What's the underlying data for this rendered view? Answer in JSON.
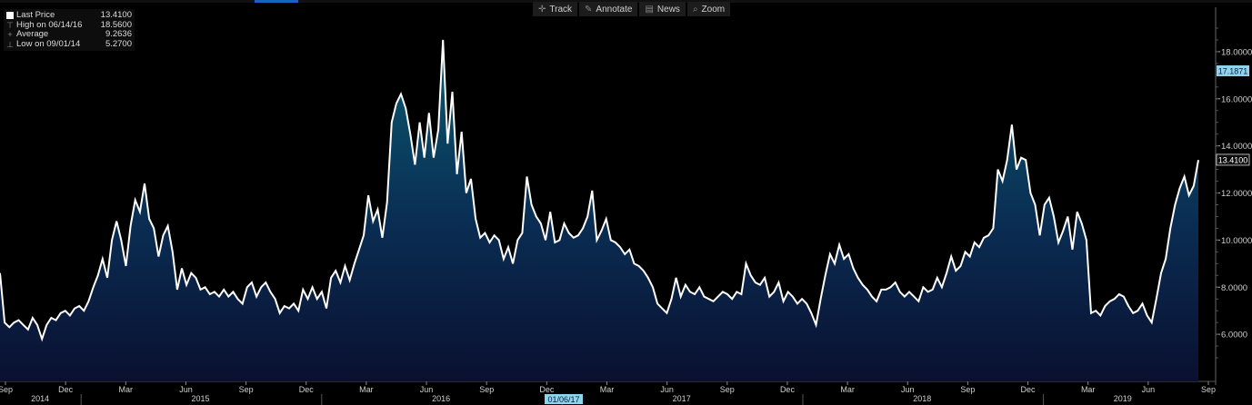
{
  "toolbar": {
    "items": [
      {
        "label": "Track",
        "icon": "crosshair-icon"
      },
      {
        "label": "Annotate",
        "icon": "pencil-icon"
      },
      {
        "label": "News",
        "icon": "news-icon"
      },
      {
        "label": "Zoom",
        "icon": "magnifier-icon"
      }
    ]
  },
  "legend": {
    "rows": [
      {
        "label": "Last Price",
        "value": "13.4100"
      },
      {
        "label": "High on 06/14/16",
        "value": "18.5600"
      },
      {
        "label": "Average",
        "value": "9.2636"
      },
      {
        "label": "Low on 09/01/14",
        "value": "5.2700"
      }
    ]
  },
  "chart_data": {
    "type": "area",
    "title": "",
    "xlabel": "",
    "ylabel": "",
    "ylim": [
      4.0,
      19.5
    ],
    "yticks": [
      "6.0000",
      "8.0000",
      "10.0000",
      "12.0000",
      "14.0000",
      "16.0000",
      "18.0000"
    ],
    "ytick_values": [
      6,
      8,
      10,
      12,
      14,
      16,
      18
    ],
    "markers": [
      {
        "label": "17.1871",
        "value": 17.1871
      },
      {
        "label": "13.4100",
        "value": 13.41
      }
    ],
    "x_start": "2014-09",
    "x_end": "2019-09",
    "month_ticks": [
      "Sep",
      "Dec",
      "Mar",
      "Jun",
      "Sep",
      "Dec",
      "Mar",
      "Jun",
      "Sep",
      "Dec",
      "Mar",
      "Jun",
      "Sep",
      "Dec",
      "Mar",
      "Jun",
      "Sep",
      "Dec",
      "Mar",
      "Jun",
      "Sep"
    ],
    "year_labels": [
      "2014",
      "2015",
      "2016",
      "2017",
      "2018",
      "2019"
    ],
    "crosshair_date": "01/06/17",
    "series": [
      {
        "values": [
          8.6,
          6.5,
          6.3,
          6.5,
          6.6,
          6.4,
          6.2,
          6.7,
          6.4,
          5.8,
          6.4,
          6.7,
          6.6,
          6.9,
          7.0,
          6.8,
          7.1,
          7.2,
          7.0,
          7.4,
          8.0,
          8.5,
          9.2,
          8.4,
          10.0,
          10.8,
          10.0,
          8.9,
          10.6,
          11.7,
          11.2,
          12.4,
          10.9,
          10.5,
          9.3,
          10.2,
          10.6,
          9.5,
          7.9,
          8.8,
          8.1,
          8.6,
          8.4,
          7.9,
          8.0,
          7.7,
          7.8,
          7.6,
          7.9,
          7.6,
          7.8,
          7.5,
          7.3,
          8.0,
          8.2,
          7.6,
          8.0,
          8.2,
          7.8,
          7.5,
          6.9,
          7.2,
          7.1,
          7.3,
          7.0,
          7.9,
          7.5,
          8.0,
          7.5,
          7.8,
          7.1,
          8.4,
          8.7,
          8.2,
          8.9,
          8.3,
          9.0,
          9.6,
          10.2,
          11.9,
          10.8,
          11.3,
          10.1,
          11.6,
          15.0,
          15.8,
          16.2,
          15.6,
          14.5,
          13.2,
          15.0,
          13.5,
          15.4,
          13.5,
          14.7,
          18.5,
          14.1,
          16.3,
          12.8,
          14.6,
          12.0,
          12.6,
          10.9,
          10.1,
          10.3,
          9.9,
          10.2,
          10.0,
          9.2,
          9.7,
          9.0,
          10.0,
          10.3,
          12.7,
          11.5,
          11.0,
          10.7,
          10.0,
          11.2,
          9.9,
          10.0,
          10.7,
          10.3,
          10.1,
          10.2,
          10.5,
          11.0,
          12.1,
          10.0,
          10.4,
          10.9,
          10.0,
          9.9,
          9.7,
          9.4,
          9.6,
          9.0,
          8.9,
          8.7,
          8.4,
          8.0,
          7.3,
          7.1,
          6.9,
          7.5,
          8.4,
          7.6,
          8.1,
          7.8,
          7.7,
          8.0,
          7.6,
          7.5,
          7.4,
          7.6,
          7.8,
          7.7,
          7.5,
          7.8,
          7.7,
          9.0,
          8.5,
          8.2,
          8.1,
          8.4,
          7.6,
          7.8,
          8.2,
          7.4,
          7.8,
          7.6,
          7.3,
          7.5,
          7.3,
          6.9,
          6.4,
          7.5,
          8.5,
          9.4,
          9.0,
          9.8,
          9.2,
          9.4,
          8.8,
          8.4,
          8.1,
          7.9,
          7.6,
          7.4,
          7.9,
          7.9,
          8.0,
          8.2,
          7.8,
          7.6,
          7.8,
          7.6,
          7.4,
          8.0,
          7.8,
          7.9,
          8.4,
          8.0,
          8.6,
          9.3,
          8.7,
          8.9,
          9.5,
          9.3,
          9.9,
          9.7,
          10.1,
          10.2,
          10.5,
          13.0,
          12.5,
          13.4,
          14.9,
          13.0,
          13.5,
          13.4,
          12.0,
          11.5,
          10.2,
          11.5,
          11.8,
          11.0,
          9.9,
          10.4,
          11.0,
          9.6,
          11.2,
          10.7,
          10.0,
          6.9,
          7.0,
          6.8,
          7.2,
          7.4,
          7.5,
          7.7,
          7.6,
          7.2,
          6.9,
          7.0,
          7.3,
          6.8,
          6.5,
          7.5,
          8.6,
          9.2,
          10.5,
          11.5,
          12.2,
          12.7,
          11.9,
          12.3,
          13.4
        ]
      }
    ]
  }
}
